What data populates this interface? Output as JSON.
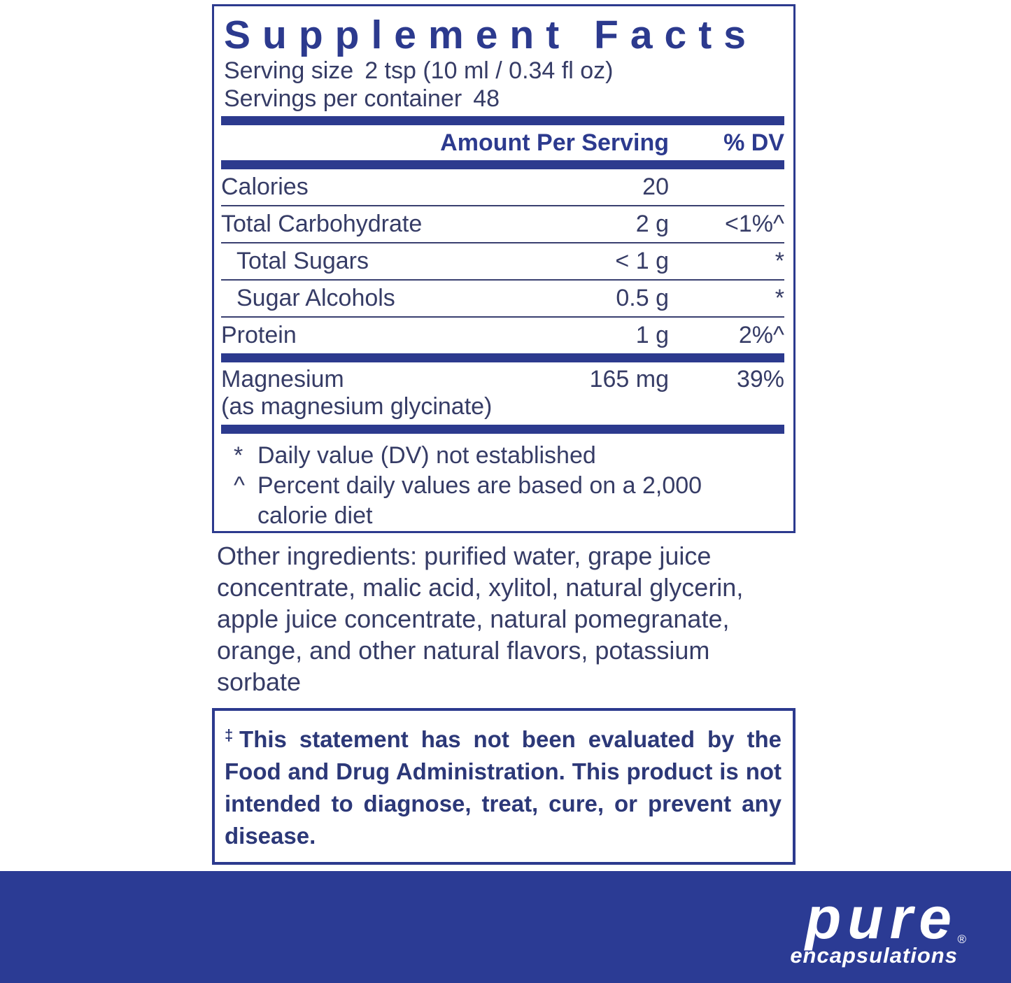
{
  "panel": {
    "title": "Supplement Facts",
    "serving_size_label": "Serving size",
    "serving_size_value": "2 tsp (10 ml / 0.34 fl oz)",
    "servings_per_container_label": "Servings per container",
    "servings_per_container_value": "48",
    "columns": {
      "amount": "Amount Per Serving",
      "dv": "% DV"
    },
    "rows": [
      {
        "name": "Calories",
        "amount": "20",
        "dv": ""
      },
      {
        "name": "Total Carbohydrate",
        "amount": "2 g",
        "dv": "<1%^"
      },
      {
        "name": "Total Sugars",
        "amount": "< 1 g",
        "dv": "*"
      },
      {
        "name": "Sugar Alcohols",
        "amount": "0.5 g",
        "dv": "*"
      },
      {
        "name": "Protein",
        "amount": "1 g",
        "dv": "2%^"
      }
    ],
    "nutrient": {
      "name": "Magnesium",
      "subname": "(as magnesium glycinate)",
      "amount": "165 mg",
      "dv": "39%"
    },
    "footnotes": [
      {
        "symbol": "*",
        "text": "Daily value (DV) not established"
      },
      {
        "symbol": "^",
        "text": "Percent daily values are based on a 2,000 calorie diet"
      }
    ]
  },
  "other_ingredients": "Other ingredients: purified water, grape juice concentrate, malic acid, xylitol, natural glycerin, apple juice concentrate, natural pomegranate, orange, and other natural flavors, potassium sorbate",
  "disclaimer": {
    "symbol": "‡",
    "text": "This statement has not been evaluated by the Food and Drug Administration. This product is not intended to diagnose, treat, cure, or prevent any disease."
  },
  "brand": {
    "name": "pure",
    "subname": "encapsulations",
    "registered": "®"
  },
  "colors": {
    "navy": "#2c3a8e",
    "body_text": "#363c66",
    "footer_blue": "#2b3b94",
    "logo_white": "#ffffff"
  }
}
